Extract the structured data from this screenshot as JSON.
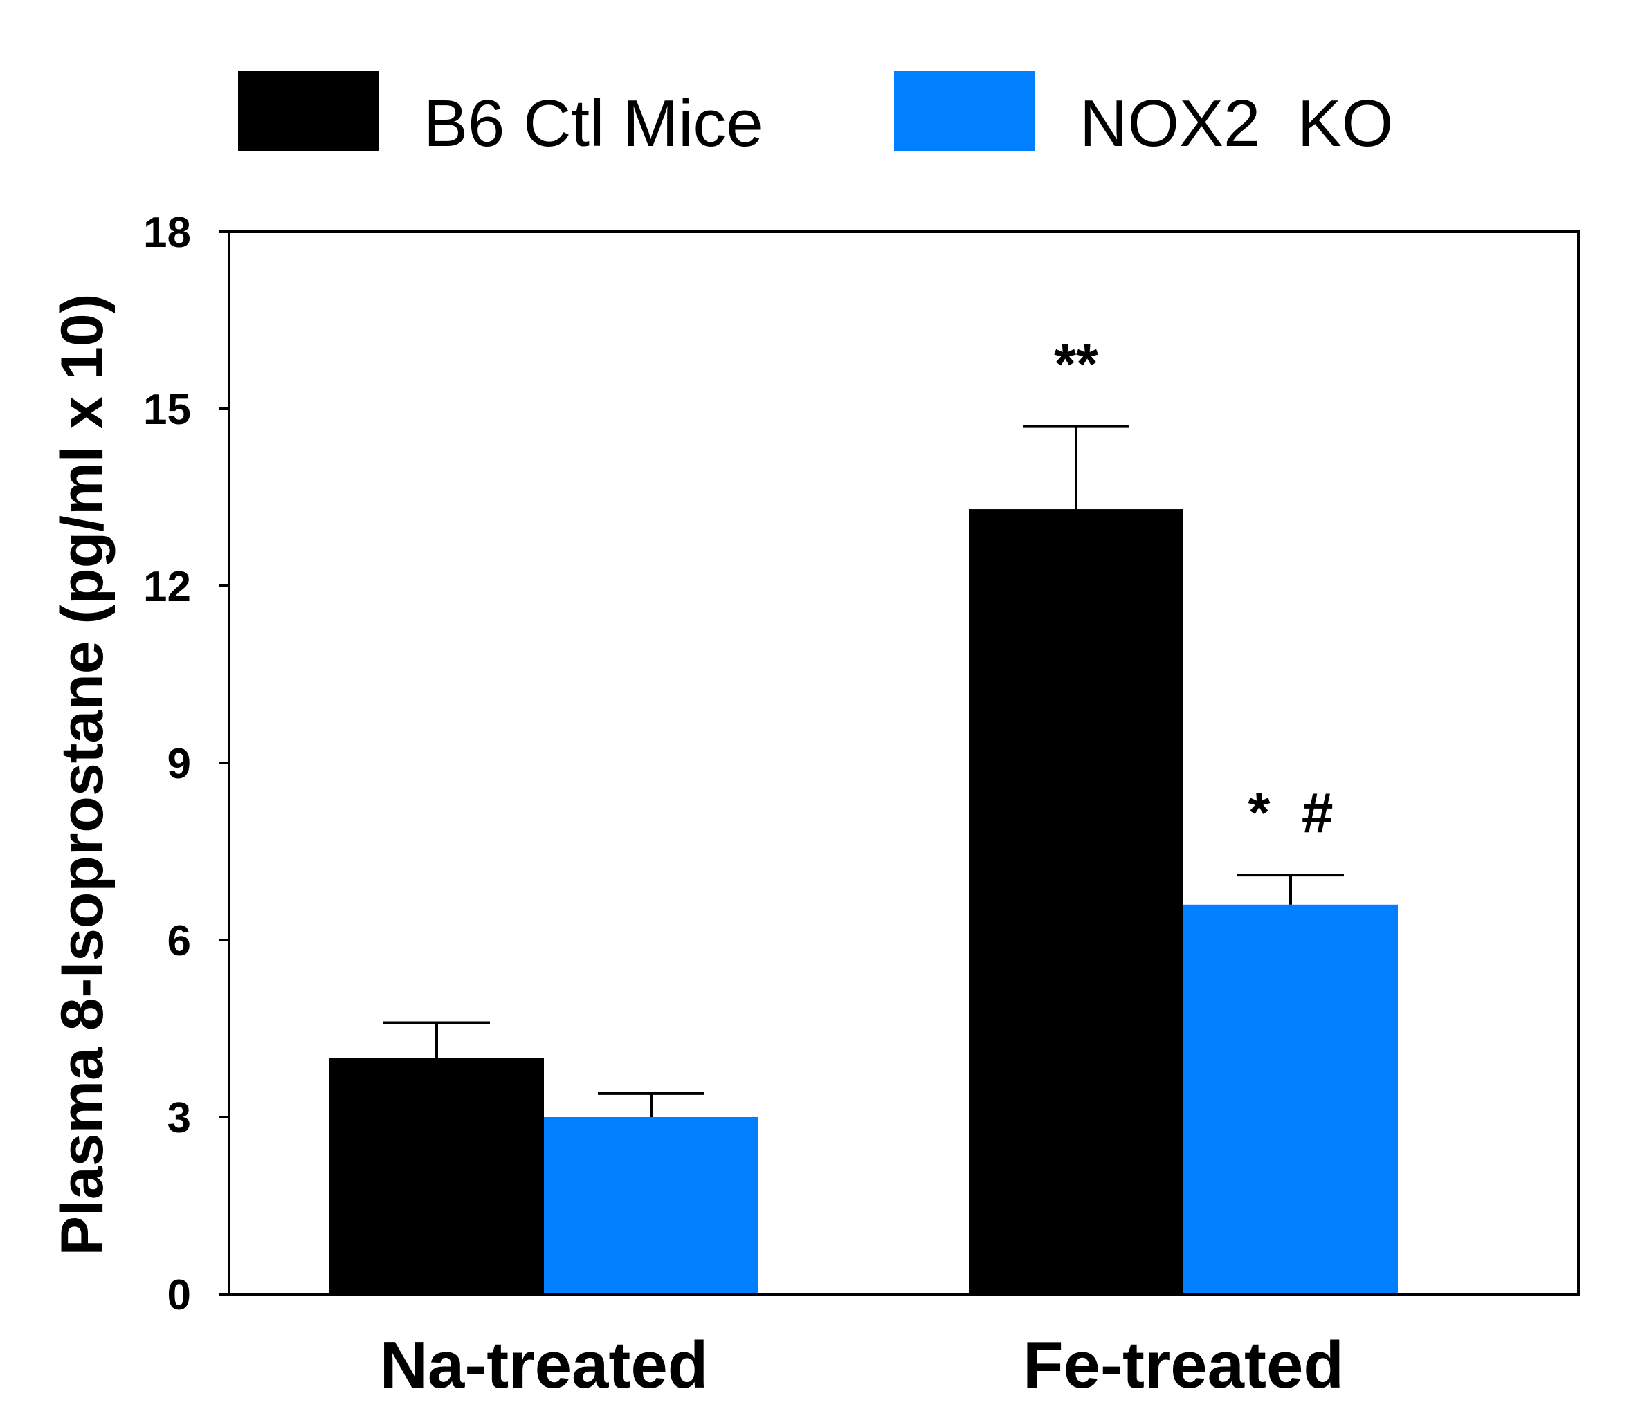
{
  "chart_data": {
    "type": "bar",
    "categories": [
      "Na-treated",
      "Fe-treated"
    ],
    "series": [
      {
        "name": "B6 Ctl Mice",
        "color": "#000000",
        "values": [
          4.0,
          13.3
        ],
        "errors": [
          0.6,
          1.4
        ],
        "annotations": [
          "",
          "**"
        ]
      },
      {
        "name": "NOX2  KO",
        "color": "#0080FF",
        "values": [
          3.0,
          6.6
        ],
        "errors": [
          0.4,
          0.5
        ],
        "annotations": [
          "",
          "*  #"
        ]
      }
    ],
    "ylabel": "Plasma 8-Isoprostane (pg/ml x 10)",
    "xlabel": "",
    "ylim": [
      0,
      18
    ],
    "yticks": [
      0,
      3,
      6,
      9,
      12,
      15,
      18
    ],
    "legend_position": "top",
    "grid": false
  }
}
